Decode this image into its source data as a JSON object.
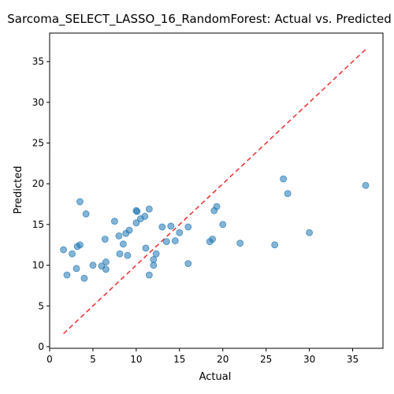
{
  "chart_data": {
    "type": "scatter",
    "title": "Sarcoma_SELECT_LASSO_16_RandomForest: Actual vs. Predicted",
    "xlabel": "Actual",
    "ylabel": "Predicted",
    "xlim": [
      0,
      38.5
    ],
    "ylim": [
      -0.2,
      38.5
    ],
    "xticks": [
      0,
      5,
      10,
      15,
      20,
      25,
      30,
      35
    ],
    "yticks": [
      0,
      5,
      10,
      15,
      20,
      25,
      30,
      35
    ],
    "grid": false,
    "point_color": "#1f77b4",
    "reference_line": {
      "x": [
        1.6,
        36.5
      ],
      "y": [
        1.6,
        36.5
      ],
      "color": "#e8393a",
      "style": "dashed"
    },
    "points": [
      {
        "x": 1.6,
        "y": 11.9
      },
      {
        "x": 2.0,
        "y": 8.8
      },
      {
        "x": 2.6,
        "y": 11.4
      },
      {
        "x": 3.1,
        "y": 9.6
      },
      {
        "x": 3.2,
        "y": 12.3
      },
      {
        "x": 3.5,
        "y": 12.5
      },
      {
        "x": 3.5,
        "y": 17.8
      },
      {
        "x": 4.0,
        "y": 8.4
      },
      {
        "x": 4.2,
        "y": 16.3
      },
      {
        "x": 5.0,
        "y": 10.0
      },
      {
        "x": 6.0,
        "y": 9.9
      },
      {
        "x": 6.4,
        "y": 13.2
      },
      {
        "x": 6.5,
        "y": 10.4
      },
      {
        "x": 6.5,
        "y": 9.5
      },
      {
        "x": 7.5,
        "y": 15.4
      },
      {
        "x": 8.0,
        "y": 13.6
      },
      {
        "x": 8.1,
        "y": 11.4
      },
      {
        "x": 8.5,
        "y": 12.6
      },
      {
        "x": 8.8,
        "y": 13.9
      },
      {
        "x": 9.0,
        "y": 11.2
      },
      {
        "x": 9.2,
        "y": 14.3
      },
      {
        "x": 10.0,
        "y": 16.7
      },
      {
        "x": 10.1,
        "y": 16.6
      },
      {
        "x": 10.0,
        "y": 15.2
      },
      {
        "x": 10.5,
        "y": 15.7
      },
      {
        "x": 11.0,
        "y": 16.0
      },
      {
        "x": 11.1,
        "y": 12.1
      },
      {
        "x": 11.5,
        "y": 16.9
      },
      {
        "x": 11.5,
        "y": 8.8
      },
      {
        "x": 12.0,
        "y": 10.7
      },
      {
        "x": 12.0,
        "y": 10.0
      },
      {
        "x": 12.3,
        "y": 11.4
      },
      {
        "x": 13.0,
        "y": 14.7
      },
      {
        "x": 13.5,
        "y": 12.9
      },
      {
        "x": 14.0,
        "y": 14.8
      },
      {
        "x": 14.5,
        "y": 13.0
      },
      {
        "x": 15.0,
        "y": 14.0
      },
      {
        "x": 16.0,
        "y": 14.7
      },
      {
        "x": 16.0,
        "y": 10.2
      },
      {
        "x": 18.5,
        "y": 12.9
      },
      {
        "x": 18.8,
        "y": 13.2
      },
      {
        "x": 19.0,
        "y": 16.7
      },
      {
        "x": 19.3,
        "y": 17.2
      },
      {
        "x": 20.0,
        "y": 15.0
      },
      {
        "x": 22.0,
        "y": 12.7
      },
      {
        "x": 26.0,
        "y": 12.5
      },
      {
        "x": 27.0,
        "y": 20.6
      },
      {
        "x": 27.5,
        "y": 18.8
      },
      {
        "x": 30.0,
        "y": 14.0
      },
      {
        "x": 36.5,
        "y": 19.8
      }
    ]
  }
}
